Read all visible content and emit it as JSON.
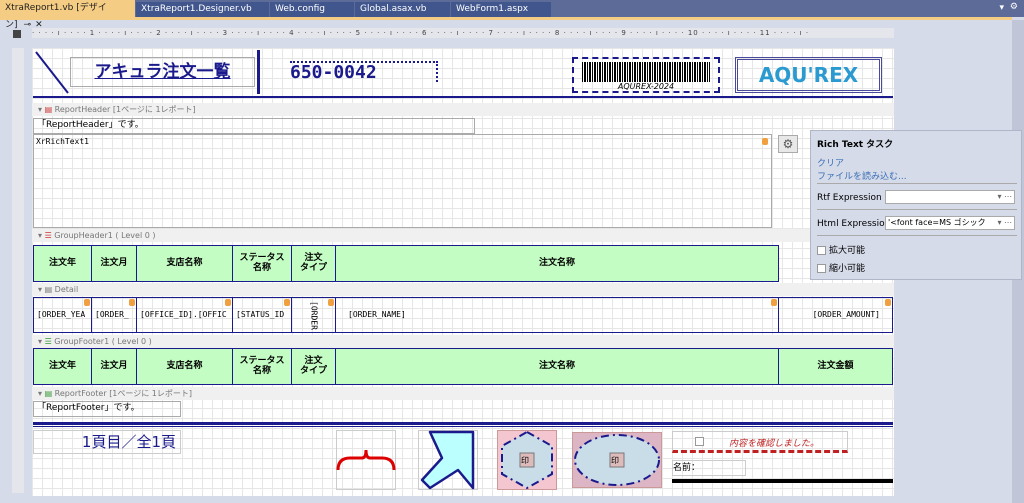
{
  "tabs": [
    {
      "label": "XtraReport1.vb [デザイン]",
      "active": true
    },
    {
      "label": "XtraReport1.Designer.vb"
    },
    {
      "label": "Web.config"
    },
    {
      "label": "Global.asax.vb"
    },
    {
      "label": "WebForm1.aspx"
    }
  ],
  "ruler": "· · · · ı · · · · 1 · · · · ı · · · · 2 · · · · ı · · · · 3 · · · · ı · · · · 4 · · · · ı · · · · 5 · · · · ı · · · · 6 · · · · ı · · · · 7 · · · · ı · · · · 8 · · · · ı · · · · 9 · · · · ı · · · · 10 · · · · ı · · · · 11 · · · · ı ·",
  "page_header": {
    "title": "アキュラ注文一覧",
    "zip": "650-0042",
    "barcode_text": "AQUREX-2024",
    "logo": "AQU'REX"
  },
  "bands": {
    "report_header": "ReportHeader [1ページに 1レポート]",
    "group_header": "GroupHeader1 ( Level 0 )",
    "detail": "Detail",
    "group_footer": "GroupFooter1 ( Level 0 )",
    "report_footer": "ReportFooter [1ページに 1レポート]"
  },
  "report_header_text": "「ReportHeader」です。",
  "rich_text": "XrRichText1",
  "columns": [
    "注文年",
    "注文月",
    "支店名称",
    "ステータス\n名称",
    "注文\nタイプ",
    "注文名称",
    "注文金額"
  ],
  "detail": [
    "[ORDER_YEA",
    "[ORDER_",
    "[OFFICE_ID].[OFFIC",
    "[STATUS_ID",
    "[ORDER",
    "[ORDER_NAME]",
    "[ORDER_AMOUNT]"
  ],
  "report_footer_text": "「ReportFooter」です。",
  "page_footer": {
    "page_info": "1頁目／全1頁",
    "stamp1": "印",
    "stamp2": "印",
    "confirm": "内容を確認しました。",
    "name_label": "名前："
  },
  "smart_tag": {
    "title": "Rich Text タスク",
    "clear": "クリア",
    "load": "ファイルを読み込む...",
    "rtf_label": "Rtf Expression",
    "rtf_value": "",
    "html_label": "Html Expression",
    "html_value": "'<font face=MS ゴシック",
    "can_grow": "拡大可能",
    "can_shrink": "縮小可能"
  },
  "colors": {
    "accent": "#1a1a8c",
    "header_fill": "#c3fdc3",
    "tab_active": "#f5cc84",
    "tabbar": "#5d6b99"
  }
}
